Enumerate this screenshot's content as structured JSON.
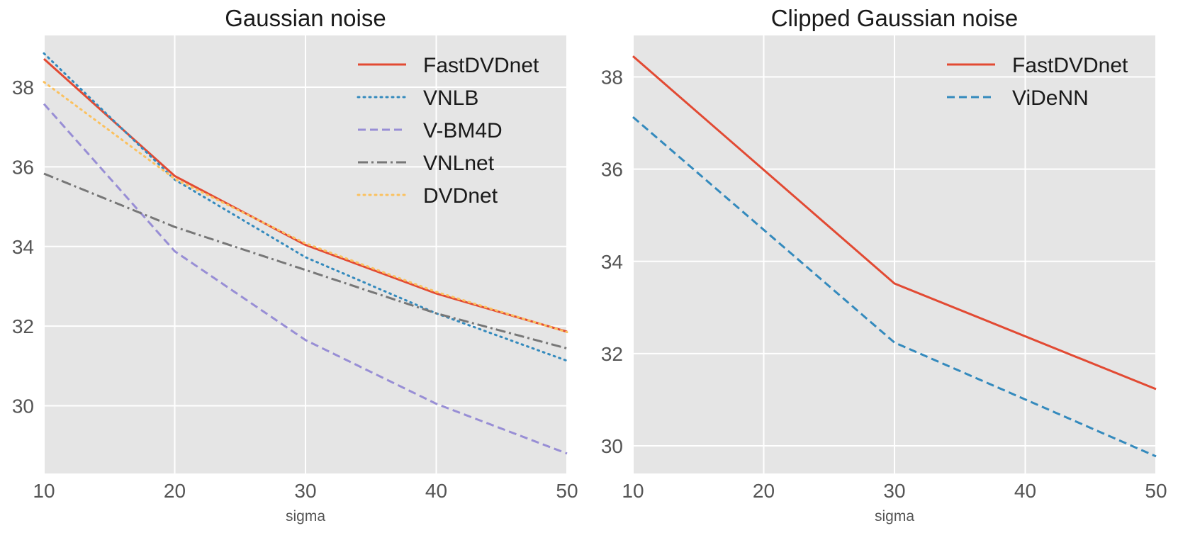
{
  "chart_data": [
    {
      "type": "line",
      "title": "Gaussian noise",
      "xlabel": "sigma",
      "ylabel": "",
      "x": [
        10,
        20,
        30,
        40,
        50
      ],
      "xlim": [
        10,
        50
      ],
      "ylim": [
        28.3,
        39.3
      ],
      "xticks": [
        10,
        20,
        30,
        40,
        50
      ],
      "yticks": [
        30,
        32,
        34,
        36,
        38
      ],
      "grid": true,
      "legend_position": "top-right",
      "series": [
        {
          "name": "FastDVDnet",
          "values": [
            38.71,
            35.77,
            34.04,
            32.82,
            31.86
          ],
          "color": "#E24A33",
          "dash": "solid"
        },
        {
          "name": "VNLB",
          "values": [
            38.85,
            35.68,
            33.73,
            32.32,
            31.13
          ],
          "color": "#348ABD",
          "dash": "dotted"
        },
        {
          "name": "V-BM4D",
          "values": [
            37.58,
            33.88,
            31.65,
            30.05,
            28.8
          ],
          "color": "#988ED5",
          "dash": "dashed"
        },
        {
          "name": "VNLnet",
          "values": [
            35.83,
            34.49,
            33.41,
            32.32,
            31.44
          ],
          "color": "#777777",
          "dash": "dashdot"
        },
        {
          "name": "DVDnet",
          "values": [
            38.13,
            35.7,
            34.08,
            32.86,
            31.85
          ],
          "color": "#FBC15E",
          "dash": "dotted"
        }
      ]
    },
    {
      "type": "line",
      "title": "Clipped Gaussian noise",
      "xlabel": "sigma",
      "ylabel": "",
      "x": [
        10,
        30,
        50
      ],
      "xlim": [
        10,
        50
      ],
      "ylim": [
        29.4,
        38.9
      ],
      "xticks": [
        10,
        20,
        30,
        40,
        50
      ],
      "yticks": [
        30,
        32,
        34,
        36,
        38
      ],
      "grid": true,
      "legend_position": "top-right",
      "series": [
        {
          "name": "FastDVDnet",
          "values": [
            38.45,
            33.52,
            31.23
          ],
          "color": "#E24A33",
          "dash": "solid"
        },
        {
          "name": "ViDeNN",
          "values": [
            37.13,
            32.24,
            29.77
          ],
          "color": "#348ABD",
          "dash": "dashed"
        }
      ]
    }
  ]
}
